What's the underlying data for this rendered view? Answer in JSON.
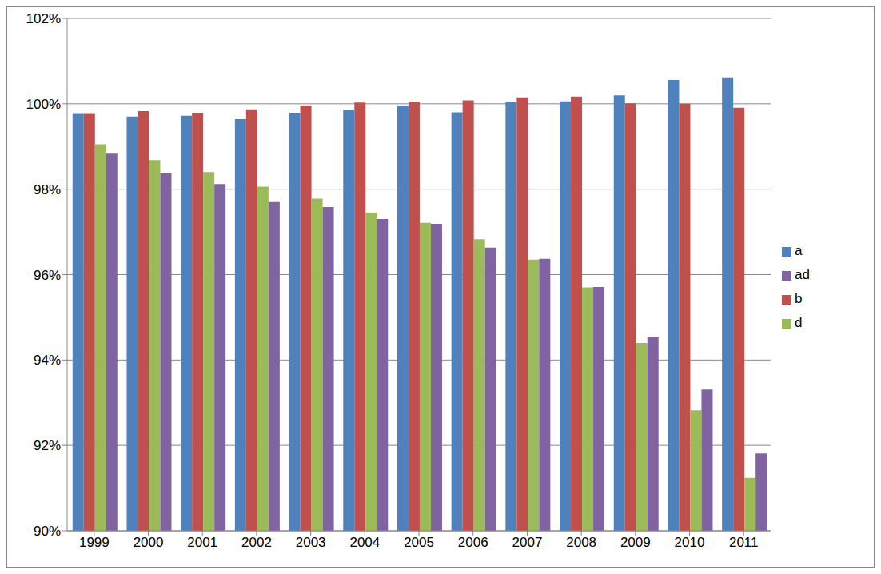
{
  "chart_data": {
    "type": "bar",
    "categories": [
      "1999",
      "2000",
      "2001",
      "2002",
      "2003",
      "2004",
      "2005",
      "2006",
      "2007",
      "2008",
      "2009",
      "2010",
      "2011"
    ],
    "series": [
      {
        "name": "a",
        "color": "#4f81bd",
        "values": [
          99.78,
          99.7,
          99.72,
          99.64,
          99.79,
          99.86,
          99.96,
          99.8,
          100.04,
          100.06,
          100.2,
          100.56,
          100.62
        ]
      },
      {
        "name": "b",
        "color": "#c0504d",
        "values": [
          99.78,
          99.83,
          99.79,
          99.87,
          99.96,
          100.03,
          100.04,
          100.08,
          100.15,
          100.17,
          100.01,
          100.0,
          99.91
        ]
      },
      {
        "name": "d",
        "color": "#9bbb59",
        "values": [
          99.05,
          98.68,
          98.4,
          98.06,
          97.78,
          97.45,
          97.21,
          96.83,
          96.35,
          95.7,
          94.4,
          92.82,
          91.24
        ]
      },
      {
        "name": "ad",
        "color": "#8064a2",
        "values": [
          98.83,
          98.38,
          98.12,
          97.7,
          97.58,
          97.3,
          97.19,
          96.63,
          96.37,
          95.71,
          94.53,
          93.31,
          91.81
        ]
      }
    ],
    "ylim": [
      90,
      102
    ],
    "yticks": [
      {
        "value": 90,
        "label": "90%"
      },
      {
        "value": 92,
        "label": "92%"
      },
      {
        "value": 94,
        "label": "94%"
      },
      {
        "value": 96,
        "label": "96%"
      },
      {
        "value": 98,
        "label": "98%"
      },
      {
        "value": 100,
        "label": "100%"
      },
      {
        "value": 102,
        "label": "102%"
      }
    ],
    "grid": true,
    "legend": "right"
  }
}
